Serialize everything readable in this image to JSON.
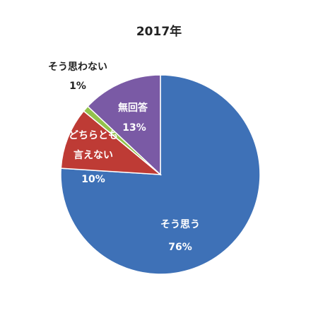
{
  "chart_data": {
    "type": "pie",
    "title": "2017年",
    "categories": [
      "そう思う",
      "どちらとも\n言えない",
      "そう思わない",
      "無回答"
    ],
    "values": [
      76,
      10,
      1,
      13
    ],
    "value_labels": [
      "76%",
      "10%",
      "1%",
      "13%"
    ],
    "colors": [
      "#3e71b7",
      "#be3b35",
      "#93c24c",
      "#7a5aa5"
    ]
  }
}
